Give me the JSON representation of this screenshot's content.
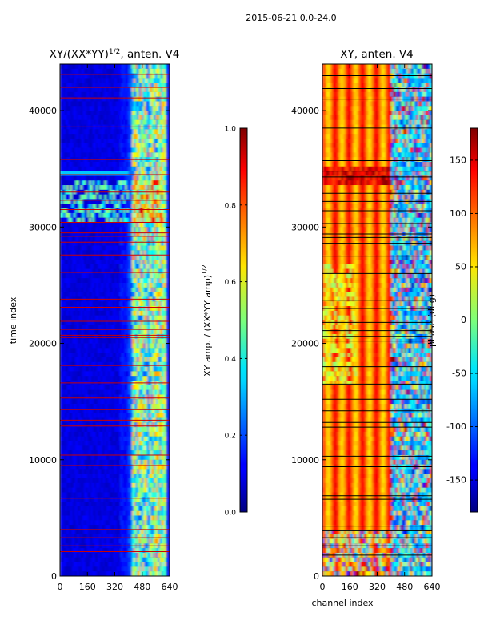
{
  "suptitle": "2015-06-21 0.0-24.0",
  "chart_data": [
    {
      "type": "heatmap",
      "title": "XY/(XX*YY)",
      "title_superscript": "1/2",
      "title_suffix": ", anten. V4",
      "xlabel": "",
      "ylabel": "time index",
      "xlim": [
        0,
        640
      ],
      "ylim": [
        0,
        44000
      ],
      "xticks": [
        0,
        160,
        320,
        480,
        640
      ],
      "yticks": [
        0,
        10000,
        20000,
        30000,
        40000
      ],
      "colormap": "jet",
      "colorbar": {
        "label": "XY amp. / (XX*YY amp)",
        "label_superscript": "1/2",
        "range": [
          0.0,
          1.0
        ],
        "ticks": [
          "0.0",
          "0.2",
          "0.4",
          "0.6",
          "0.8",
          "1.0"
        ]
      },
      "flag_line_color": "#cc0000",
      "flagged_rows": [
        2100,
        2600,
        3300,
        4000,
        6700,
        9500,
        10400,
        12900,
        13400,
        14300,
        15300,
        16600,
        18100,
        20500,
        20700,
        21200,
        21900,
        23100,
        23800,
        26100,
        27600,
        28700,
        29200,
        29500,
        30400,
        31500,
        32300,
        33000,
        34500,
        35800,
        38600,
        41100,
        42000,
        43100
      ],
      "data_description": "Normalized XY amplitude per channel per time index: low (~0.05-0.15) for channels 0-400, higher and variable (0.3-0.8) for channels ~410-600, with vertical stripes and sharp bands near 30000-35000."
    },
    {
      "type": "heatmap",
      "title": "XY, anten. V4",
      "xlabel": "channel index",
      "ylabel": "",
      "xlim": [
        0,
        640
      ],
      "ylim": [
        0,
        44000
      ],
      "xticks": [
        0,
        160,
        320,
        480,
        640
      ],
      "yticks": [
        0,
        10000,
        20000,
        30000,
        40000
      ],
      "colormap": "jet",
      "colorbar": {
        "label": "phase (deg)",
        "range": [
          -180,
          180
        ],
        "ticks": [
          "-150",
          "-100",
          "-50",
          "0",
          "50",
          "100",
          "150"
        ]
      },
      "flag_line_color": "#000000",
      "flagged_rows": [
        1800,
        2600,
        3300,
        3900,
        4300,
        6600,
        6900,
        9400,
        10300,
        12800,
        13200,
        14200,
        15200,
        16500,
        18000,
        20200,
        20600,
        21100,
        21800,
        23000,
        23700,
        26000,
        27500,
        28600,
        29100,
        29400,
        30300,
        31400,
        32200,
        32900,
        34300,
        34800,
        35700,
        38500,
        41000,
        41900,
        43000
      ],
      "data_description": "XY phase per channel: vertical red/orange/yellow fringes (about +60 to +150 deg) across channels 0-400, noisy mix of phases beyond channel 420."
    }
  ]
}
